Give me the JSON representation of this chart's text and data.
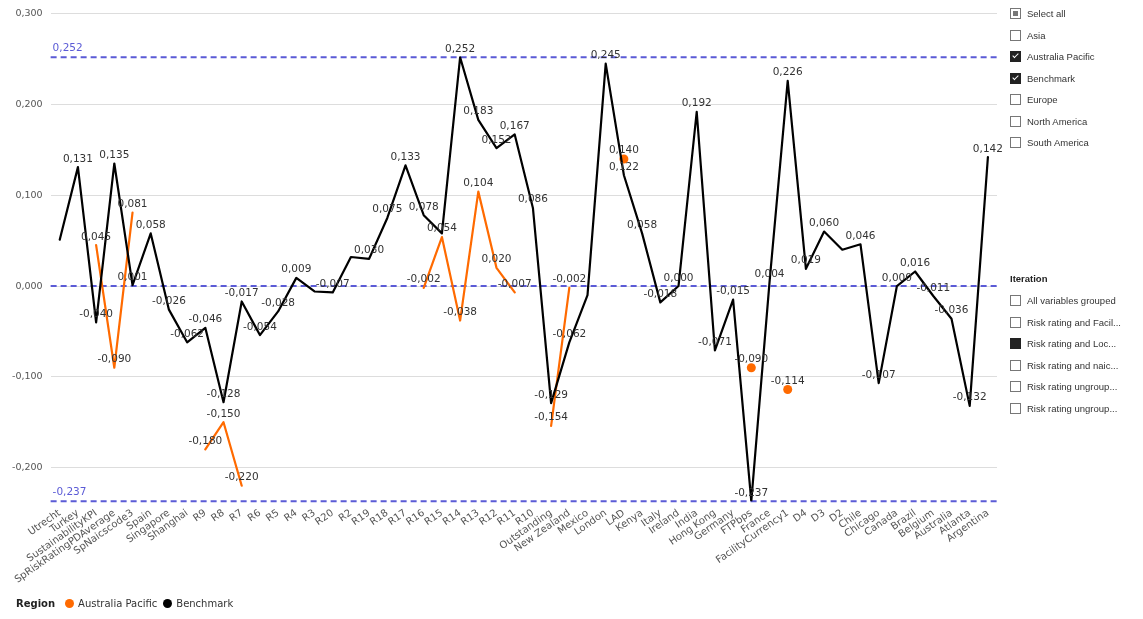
{
  "chart_data": [
    {
      "type": "line",
      "categories": [
        "Utrecht",
        "Turkey",
        "SustainabilityKPI",
        "SpRiskRatingPDAverage",
        "SpNaicscode3",
        "Spain",
        "Singapore",
        "Shanghai",
        "R9",
        "R8",
        "R7",
        "R6",
        "R5",
        "R4",
        "R3",
        "R20",
        "R2",
        "R19",
        "R18",
        "R17",
        "R16",
        "R15",
        "R14",
        "R13",
        "R12",
        "R11",
        "R10",
        "Outstanding",
        "New Zealand",
        "Mexico",
        "London",
        "LAD",
        "Kenya",
        "Italy",
        "Ireland",
        "India",
        "Hong Kong",
        "Germany",
        "FTPbps",
        "France",
        "FacilityCurrency1",
        "D4",
        "D3",
        "D2",
        "Chile",
        "Chicago",
        "Canada",
        "Brazil",
        "Belgium",
        "Australia",
        "Atlanta",
        "Argentina"
      ],
      "series": [
        {
          "name": "Benchmark",
          "color": "#000000",
          "values": [
            0.051,
            0.131,
            -0.04,
            0.135,
            0.001,
            0.058,
            -0.026,
            -0.062,
            -0.046,
            -0.128,
            -0.017,
            -0.054,
            -0.028,
            0.009,
            -0.006,
            -0.007,
            0.032,
            0.03,
            0.075,
            0.133,
            0.078,
            0.058,
            0.252,
            0.183,
            0.152,
            0.167,
            0.086,
            -0.129,
            -0.062,
            -0.01,
            0.245,
            0.122,
            0.058,
            -0.018,
            0.0,
            0.192,
            -0.071,
            -0.015,
            -0.237,
            0.004,
            0.226,
            0.019,
            0.06,
            0.04,
            0.046,
            -0.107,
            0.0,
            0.016,
            -0.011,
            -0.036,
            -0.132,
            0.142
          ],
          "value_labels": [
            null,
            "0,131",
            "-0,040",
            "0,135",
            "0,001",
            "0,058",
            "-0,026",
            "-0,062",
            "-0,046",
            "-0,128",
            "-0,017",
            "-0,054",
            "-0,028",
            "0,009",
            null,
            "-0,007",
            null,
            "0,030",
            "0,075",
            "0,133",
            "0,078",
            null,
            "0,252",
            "0,183",
            "0,152",
            "0,167",
            "0,086",
            "-0,129",
            "-0,062",
            null,
            "0,245",
            "0,122",
            "0,058",
            "-0,018",
            "0,000",
            "0,192",
            "-0,071",
            "-0,015",
            "-0,237",
            "0,004",
            "0,226",
            "0,019",
            "0,060",
            null,
            "0,046",
            "-0,107",
            "0,000",
            "0,016",
            "-0,011",
            "-0,036",
            "-0,132",
            "0,142"
          ]
        },
        {
          "name": "Australia Pacific",
          "color": "#ff6a00",
          "values": [
            null,
            null,
            0.045,
            -0.09,
            0.081,
            null,
            null,
            null,
            -0.18,
            -0.15,
            -0.22,
            null,
            null,
            null,
            null,
            null,
            null,
            null,
            null,
            null,
            -0.002,
            0.054,
            -0.038,
            0.104,
            0.02,
            -0.007,
            null,
            -0.154,
            -0.002,
            null,
            null,
            0.14,
            null,
            null,
            null,
            null,
            null,
            null,
            -0.09,
            null,
            -0.114,
            null,
            null,
            null,
            null,
            null,
            null,
            null,
            null,
            null,
            null,
            null
          ],
          "value_labels": [
            null,
            null,
            "0,045",
            "-0,090",
            "0,081",
            null,
            null,
            null,
            "-0,180",
            "-0,150",
            "-0,220",
            null,
            null,
            null,
            null,
            null,
            null,
            null,
            null,
            null,
            "-0,002",
            "0,054",
            "-0,038",
            "0,104",
            "0,020",
            "-0,007",
            null,
            "-0,154",
            "-0,002",
            null,
            null,
            "0,140",
            null,
            null,
            null,
            null,
            null,
            null,
            "-0,090",
            null,
            "-0,114",
            null,
            null,
            null,
            null,
            null,
            null,
            null,
            null,
            null,
            null,
            null
          ]
        }
      ],
      "ylim": [
        -0.237,
        0.3
      ],
      "yticks": [
        {
          "value": -0.2,
          "label": "-0,200"
        },
        {
          "value": -0.1,
          "label": "-0,100"
        },
        {
          "value": 0,
          "label": "0,000"
        },
        {
          "value": 0.1,
          "label": "0,100"
        },
        {
          "value": 0.2,
          "label": "0,200"
        },
        {
          "value": 0.3,
          "label": "0,300"
        }
      ],
      "ref_lines": [
        {
          "axis": "y",
          "value": 0.252,
          "label": "0,252",
          "color": "#5b5bd6",
          "line_style": "dashed"
        },
        {
          "axis": "y",
          "value": 0,
          "label": null,
          "color": "#5b5bd6",
          "line_style": "dashed"
        },
        {
          "axis": "y",
          "value": -0.237,
          "label": "-0,237",
          "color": "#5b5bd6",
          "line_style": "dashed"
        }
      ],
      "grid": "y",
      "legend": "bottom",
      "legend_title": "Region",
      "marker": "none",
      "line_style": "solid"
    },
    {
      "type": "other",
      "annotations": [
        "Select all",
        "Asia",
        "Australia Pacific",
        "Benchmark",
        "Europe",
        "North America",
        "South America"
      ]
    },
    {
      "type": "other",
      "title": "Iteration",
      "annotations": [
        "All variables grouped",
        "Risk rating and Facil...",
        "Risk rating and Loc...",
        "Risk rating and naic...",
        "Risk rating ungroup...",
        "Risk rating ungroup..."
      ]
    }
  ]
}
